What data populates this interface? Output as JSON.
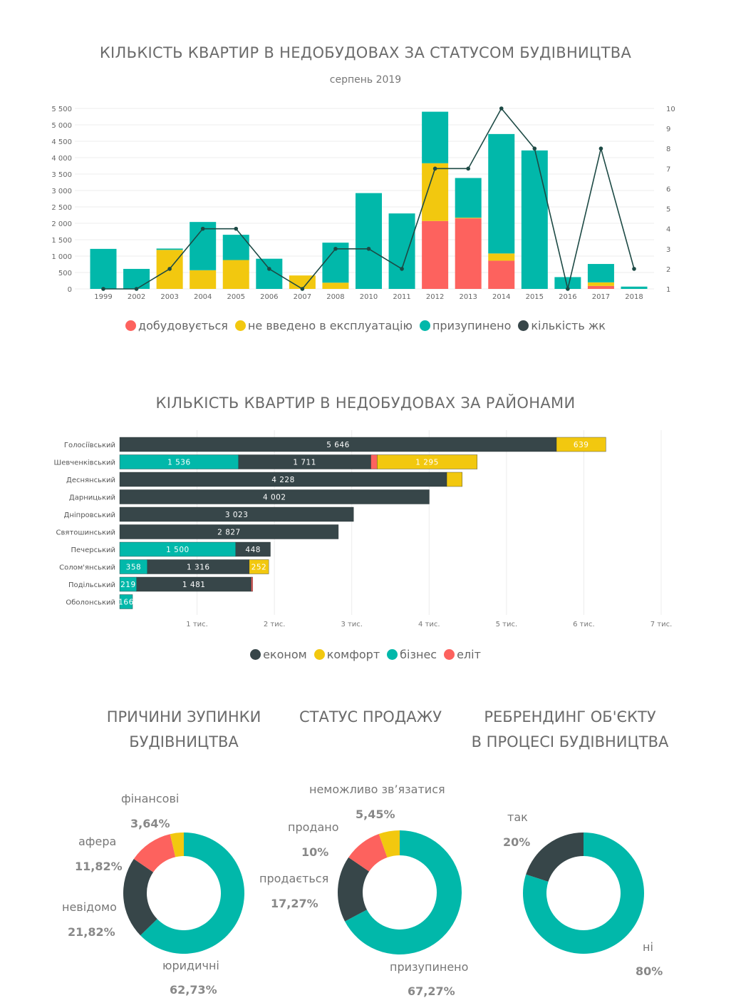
{
  "colors": {
    "dobudovuietsia": "#FD625E",
    "ne_vvedeno": "#F2C80F",
    "pryzupyneno": "#01B8AA",
    "kilkist": "#1d4a45",
    "ekonom": "#374649",
    "komfort": "#F2C80F",
    "biznes": "#01B8AA",
    "elit": "#FD625E"
  },
  "chart_data": [
    {
      "type": "bar",
      "title": "КІЛЬКІСТЬ КВАРТИР В НЕДОБУДОВАХ ЗА СТАТУСОМ БУДІВНИЦТВА",
      "subtitle": "серпень 2019",
      "categories": [
        "1999",
        "2002",
        "2003",
        "2004",
        "2005",
        "2006",
        "2007",
        "2008",
        "2010",
        "2011",
        "2012",
        "2013",
        "2014",
        "2015",
        "2016",
        "2017",
        "2018"
      ],
      "series": [
        {
          "name": "добудовується",
          "key": "dobudovuietsia",
          "values": [
            0,
            0,
            0,
            0,
            0,
            0,
            0,
            0,
            0,
            0,
            2070,
            2150,
            860,
            0,
            0,
            90,
            0
          ]
        },
        {
          "name": "не введено в експлуатацію",
          "key": "ne_vvedeno",
          "values": [
            0,
            0,
            1190,
            570,
            880,
            0,
            410,
            190,
            0,
            0,
            1760,
            20,
            220,
            0,
            0,
            110,
            0
          ]
        },
        {
          "name": "призупинено",
          "key": "pryzupyneno",
          "values": [
            1220,
            610,
            40,
            1470,
            770,
            920,
            0,
            1220,
            2920,
            2300,
            1570,
            1210,
            3640,
            4220,
            360,
            560,
            70
          ]
        },
        {
          "name": "кількість жк",
          "key": "kilkist",
          "type": "line",
          "axis": "right",
          "values": [
            1,
            1,
            2,
            4,
            4,
            2,
            1,
            3,
            3,
            2,
            7,
            7,
            10,
            8,
            1,
            8,
            2
          ]
        }
      ],
      "y_ticks": [
        "0",
        "500",
        "1 000",
        "1 500",
        "2 000",
        "2 500",
        "3 000",
        "3 500",
        "4 000",
        "4 500",
        "5 000",
        "5 500"
      ],
      "ylim": [
        0,
        5500
      ],
      "y2_ticks": [
        "1",
        "2",
        "3",
        "4",
        "5",
        "6",
        "7",
        "8",
        "9",
        "10"
      ],
      "y2lim": [
        1,
        10
      ],
      "grid": true,
      "legend_placement": "bottom"
    },
    {
      "type": "bar",
      "orientation": "horizontal",
      "title": "КІЛЬКІСТЬ КВАРТИР В НЕДОБУДОВАХ ЗА РАЙОНАМИ",
      "legend": [
        {
          "key": "ekonom",
          "name": "економ"
        },
        {
          "key": "komfort",
          "name": "комфорт"
        },
        {
          "key": "biznes",
          "name": "бізнес"
        },
        {
          "key": "elit",
          "name": "еліт"
        }
      ],
      "rows": [
        {
          "name": "Голосіївський",
          "segments": [
            {
              "key": "ekonom",
              "value": 5646,
              "label": "5 646"
            },
            {
              "key": "komfort",
              "value": 639,
              "label": "639"
            }
          ]
        },
        {
          "name": "Шевченківський",
          "segments": [
            {
              "key": "biznes",
              "value": 1536,
              "label": "1 536"
            },
            {
              "key": "ekonom",
              "value": 1711,
              "label": "1 711"
            },
            {
              "key": "elit",
              "value": 80,
              "label": null
            },
            {
              "key": "komfort",
              "value": 1295,
              "label": "1 295"
            }
          ]
        },
        {
          "name": "Деснянський",
          "segments": [
            {
              "key": "ekonom",
              "value": 4228,
              "label": "4 228"
            },
            {
              "key": "komfort",
              "value": 200,
              "label": null
            }
          ]
        },
        {
          "name": "Дарницький",
          "segments": [
            {
              "key": "ekonom",
              "value": 4002,
              "label": "4 002"
            }
          ]
        },
        {
          "name": "Дніпровський",
          "segments": [
            {
              "key": "ekonom",
              "value": 3023,
              "label": "3 023"
            }
          ]
        },
        {
          "name": "Святошинський",
          "segments": [
            {
              "key": "ekonom",
              "value": 2827,
              "label": "2 827"
            }
          ]
        },
        {
          "name": "Печерський",
          "segments": [
            {
              "key": "biznes",
              "value": 1500,
              "label": "1 500"
            },
            {
              "key": "ekonom",
              "value": 448,
              "label": "448"
            }
          ]
        },
        {
          "name": "Солом'янський",
          "segments": [
            {
              "key": "biznes",
              "value": 358,
              "label": "358"
            },
            {
              "key": "ekonom",
              "value": 1316,
              "label": "1 316"
            },
            {
              "key": "komfort",
              "value": 252,
              "label": "252"
            }
          ]
        },
        {
          "name": "Подільський",
          "segments": [
            {
              "key": "biznes",
              "value": 219,
              "label": "219"
            },
            {
              "key": "ekonom",
              "value": 1481,
              "label": "1 481"
            },
            {
              "key": "elit",
              "value": 20,
              "label": null
            }
          ]
        },
        {
          "name": "Оболонський",
          "segments": [
            {
              "key": "biznes",
              "value": 166,
              "label": "166"
            }
          ]
        }
      ],
      "x_ticks": [
        "1 тис.",
        "2 тис.",
        "3 тис.",
        "4 тис.",
        "5 тис.",
        "6 тис.",
        "7 тис."
      ],
      "xlim": [
        0,
        7000
      ],
      "grid": true,
      "legend_placement": "bottom"
    },
    {
      "type": "pie",
      "donut": true,
      "title_lines": [
        "ПРИЧИНИ ЗУПИНКИ",
        "БУДІВНИЦТВА"
      ],
      "slices": [
        {
          "name": "юридичні",
          "value": 62.73,
          "label": "62,73%",
          "key": "pryzupyneno"
        },
        {
          "name": "невідомо",
          "value": 21.82,
          "label": "21,82%",
          "key": "ekonom"
        },
        {
          "name": "афера",
          "value": 11.82,
          "label": "11,82%",
          "key": "elit"
        },
        {
          "name": "фінансові",
          "value": 3.64,
          "label": "3,64%",
          "key": "komfort"
        }
      ]
    },
    {
      "type": "pie",
      "donut": true,
      "title_lines": [
        "СТАТУС ПРОДАЖУ"
      ],
      "slices": [
        {
          "name": "призупинено",
          "value": 67.27,
          "label": "67,27%",
          "key": "pryzupyneno"
        },
        {
          "name": "продається",
          "value": 17.27,
          "label": "17,27%",
          "key": "ekonom"
        },
        {
          "name": "продано",
          "value": 10,
          "label": "10%",
          "key": "elit"
        },
        {
          "name": "неможливо зв’язатися",
          "value": 5.45,
          "label": "5,45%",
          "key": "komfort"
        }
      ]
    },
    {
      "type": "pie",
      "donut": true,
      "title_lines": [
        "РЕБРЕНДИНГ ОБ'ЄКТУ",
        "В ПРОЦЕСІ БУДІВНИЦТВА"
      ],
      "slices": [
        {
          "name": "ні",
          "value": 80,
          "label": "80%",
          "key": "pryzupyneno"
        },
        {
          "name": "так",
          "value": 20,
          "label": "20%",
          "key": "ekonom"
        }
      ]
    }
  ]
}
